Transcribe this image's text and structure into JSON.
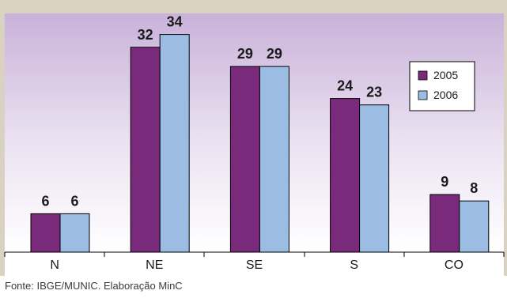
{
  "chart_data": {
    "type": "bar",
    "categories": [
      "N",
      "NE",
      "SE",
      "S",
      "CO"
    ],
    "series": [
      {
        "name": "2005",
        "values": [
          6,
          32,
          29,
          24,
          9
        ]
      },
      {
        "name": "2006",
        "values": [
          6,
          34,
          29,
          23,
          8
        ]
      }
    ],
    "ylim": [
      0,
      40
    ],
    "title": "",
    "xlabel": "",
    "ylabel": "",
    "grid": false,
    "legend_position": "right",
    "colors": {
      "series": [
        "#7a2a7a",
        "#9bbde4"
      ],
      "frame": "#d9d1c2",
      "plot_top": "#c9b2d9",
      "plot_bottom": "#ffffff"
    }
  },
  "source_note": "Fonte: IBGE/MUNIC. Elaboração MinC"
}
